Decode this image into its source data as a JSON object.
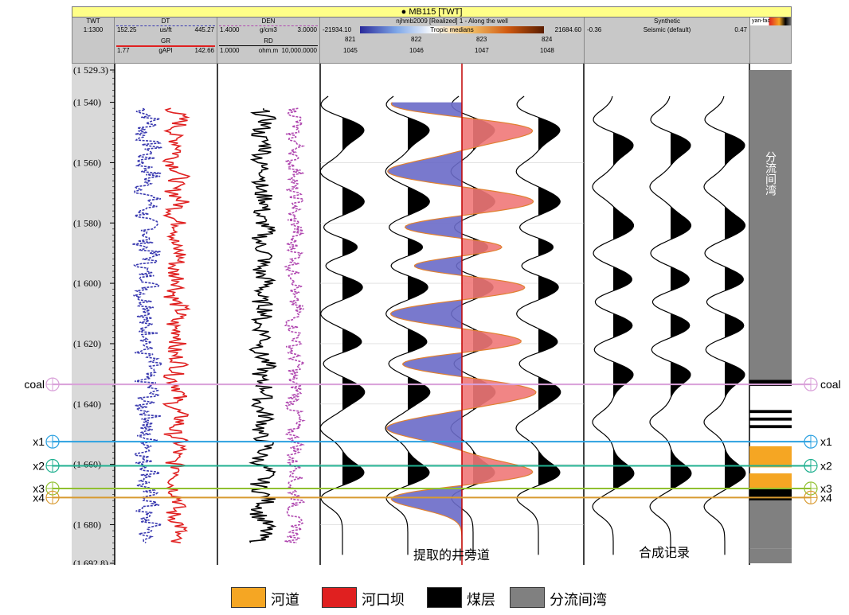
{
  "title": "MB115 [TWT]",
  "header": {
    "twt": {
      "name": "TWT",
      "scale": "1:1300"
    },
    "dt": {
      "name": "DT",
      "min": "152.25",
      "unit": "us/ft",
      "max": "445.27",
      "color": "#3a3ab0"
    },
    "gr": {
      "name": "GR",
      "min": "1.77",
      "unit": "gAPI",
      "max": "142.66",
      "color": "#e02020"
    },
    "den": {
      "name": "DEN",
      "min": "1.4000",
      "unit": "g/cm3",
      "max": "3.0000",
      "color": "#b048b0"
    },
    "rd": {
      "name": "RD",
      "min": "1.0000",
      "unit": "ohm.m",
      "max": "10,000.0000",
      "color": "#000000"
    },
    "seismic": {
      "name": "njhmb2009 [Realized] 1 - Along the well",
      "min": "-21934.10",
      "scale_name": "Tropic medians",
      "max": "21684.60",
      "traces_top": [
        "821",
        "822",
        "823",
        "824"
      ],
      "traces_bottom": [
        "1045",
        "1046",
        "1047",
        "1048"
      ]
    },
    "synthetic": {
      "name": "Synthetic",
      "min": "-0.36",
      "scale_name": "Seismic (default)",
      "max": "0.47"
    },
    "facies": {
      "name": "yan-fac"
    }
  },
  "horizons": [
    {
      "name": "coal",
      "color": "#d9a0d9"
    },
    {
      "name": "x1",
      "color": "#2aa0e0"
    },
    {
      "name": "x2",
      "color": "#20b090"
    },
    {
      "name": "x3",
      "color": "#90c030"
    },
    {
      "name": "x4",
      "color": "#d89a30"
    }
  ],
  "facies_text": "分流间湾",
  "captions": {
    "extracted": "提取的井旁道",
    "synthetic": "合成记录"
  },
  "legend": [
    {
      "label": "河道",
      "color": "#f5a623"
    },
    {
      "label": "河口坝",
      "color": "#e02020"
    },
    {
      "label": "煤层",
      "color": "#000000"
    },
    {
      "label": "分流间湾",
      "color": "#808080"
    }
  ],
  "chart_data": {
    "type": "line",
    "title": "MB115 [TWT]",
    "y_axis": {
      "label": "TWT",
      "range": [
        1529.3,
        1692.8
      ],
      "ticks": [
        1529.3,
        1540,
        1560,
        1580,
        1600,
        1620,
        1640,
        1660,
        1680,
        1692.8
      ],
      "tick_labels": [
        "(1 529.3)",
        "(1 540)",
        "(1 560)",
        "(1 580)",
        "(1 600)",
        "(1 620)",
        "(1 640)",
        "(1 660)",
        "(1 680)",
        "(1 692.8)"
      ]
    },
    "horizon_times": {
      "coal": 1633.5,
      "x1": 1652.5,
      "x2": 1660.5,
      "x3": 1668,
      "x4": 1671
    },
    "facies_intervals": [
      {
        "facies": "分流间湾",
        "from": 1529.3,
        "to": 1632
      },
      {
        "facies": "煤层",
        "from": 1632,
        "to": 1634
      },
      {
        "facies": "煤层",
        "from": 1642,
        "to": 1643
      },
      {
        "facies": "煤层",
        "from": 1644.5,
        "to": 1645.5
      },
      {
        "facies": "煤层",
        "from": 1647,
        "to": 1648
      },
      {
        "facies": "河道",
        "from": 1654,
        "to": 1661
      },
      {
        "facies": "河道",
        "from": 1663,
        "to": 1668
      },
      {
        "facies": "煤层",
        "from": 1668,
        "to": 1672
      },
      {
        "facies": "分流间湾",
        "from": 1672,
        "to": 1688
      },
      {
        "facies": "分流间湾",
        "from": 1688,
        "to": 1692.8
      }
    ],
    "extracted_trace_peaks": [
      1549,
      1573,
      1588,
      1601,
      1620,
      1636,
      1663
    ],
    "extracted_trace_troughs": [
      1541,
      1563,
      1582,
      1594,
      1610,
      1626,
      1648,
      1671
    ],
    "synthetic_trace_peaks": [
      1554,
      1581,
      1599,
      1614,
      1630,
      1663
    ],
    "synthetic_trace_troughs": [
      1546,
      1568,
      1590,
      1606,
      1622,
      1646,
      1674
    ]
  }
}
